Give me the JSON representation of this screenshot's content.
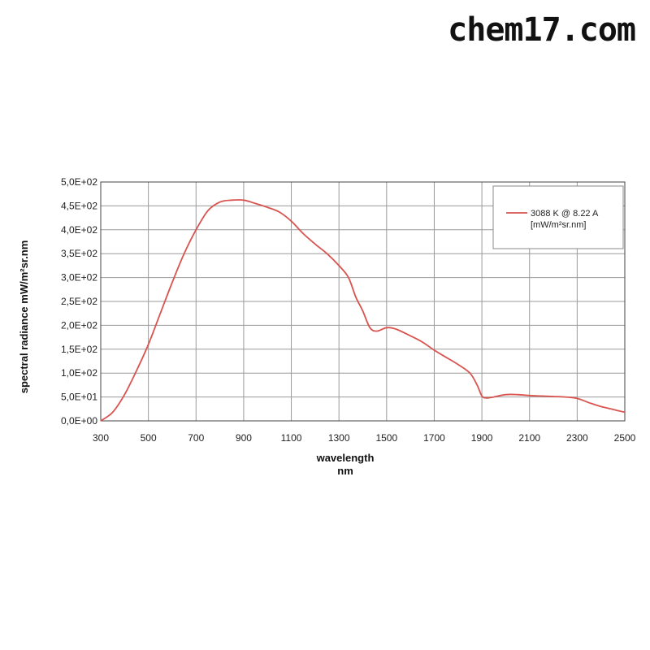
{
  "watermark": "chem17.com",
  "chart_data": {
    "type": "line",
    "xlabel": "wavelength",
    "xunit": "nm",
    "ylabel": "spectral radiance mW/m²sr.nm",
    "xlim": [
      300,
      2500
    ],
    "ylim": [
      0,
      500
    ],
    "x_ticks": [
      300,
      500,
      700,
      900,
      1100,
      1300,
      1500,
      1700,
      1900,
      2100,
      2300,
      2500
    ],
    "y_ticks": [
      0,
      50,
      100,
      150,
      200,
      250,
      300,
      350,
      400,
      450,
      500
    ],
    "y_tick_labels": [
      "0,0E+00",
      "5,0E+01",
      "1,0E+02",
      "1,5E+02",
      "2,0E+02",
      "2,5E+02",
      "3,0E+02",
      "3,5E+02",
      "4,0E+02",
      "4,5E+02",
      "5,0E+02"
    ],
    "grid": true,
    "legend_position": "top-right",
    "colors": {
      "series": "#d9534f",
      "grid": "#9a9a9a",
      "frame": "#444444"
    },
    "series": [
      {
        "name": "3088 K @ 8.22 A",
        "legend_sub": "[mW/m²sr.nm]",
        "x": [
          300,
          350,
          400,
          450,
          500,
          550,
          600,
          650,
          700,
          750,
          800,
          850,
          900,
          950,
          1000,
          1050,
          1100,
          1150,
          1200,
          1250,
          1300,
          1340,
          1370,
          1400,
          1430,
          1460,
          1500,
          1540,
          1600,
          1650,
          1700,
          1750,
          1800,
          1850,
          1880,
          1900,
          1920,
          1950,
          2000,
          2050,
          2100,
          2150,
          2200,
          2250,
          2300,
          2350,
          2400,
          2450,
          2500
        ],
        "values": [
          0,
          18,
          55,
          105,
          160,
          225,
          290,
          350,
          400,
          440,
          458,
          462,
          462,
          455,
          447,
          437,
          418,
          392,
          370,
          350,
          325,
          300,
          260,
          230,
          195,
          188,
          195,
          192,
          178,
          165,
          148,
          133,
          118,
          100,
          75,
          52,
          48,
          50,
          55,
          55,
          53,
          52,
          51,
          50,
          47,
          38,
          30,
          24,
          18
        ]
      }
    ]
  }
}
